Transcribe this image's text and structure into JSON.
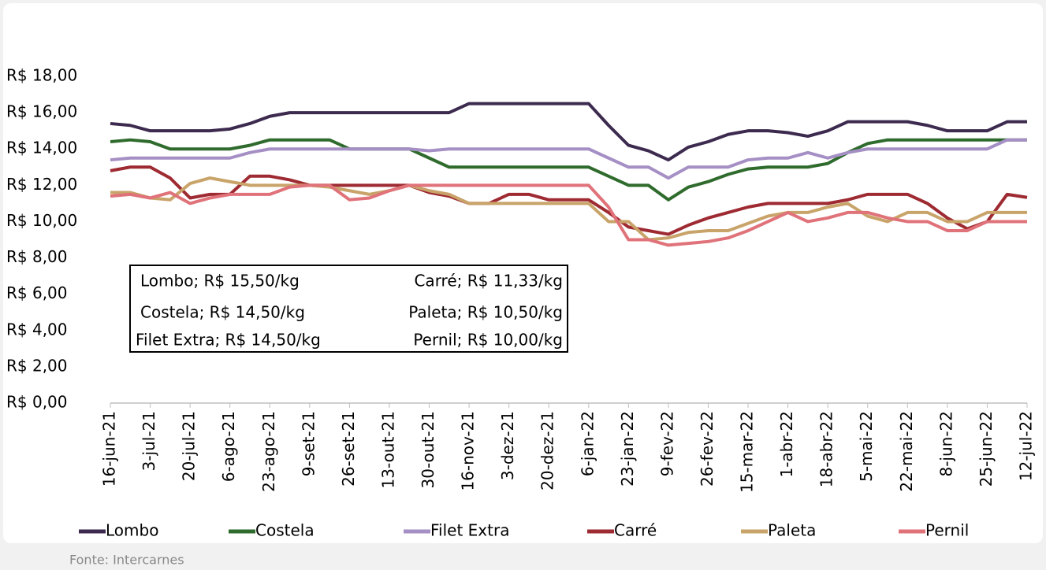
{
  "chart_data": {
    "type": "line",
    "categories": [
      "16-jun-21",
      null,
      "3-jul-21",
      null,
      "20-jul-21",
      null,
      "6-ago-21",
      null,
      "23-ago-21",
      null,
      "9-set-21",
      null,
      "26-set-21",
      null,
      "13-out-21",
      null,
      "30-out-21",
      null,
      "16-nov-21",
      null,
      "3-dez-21",
      null,
      "20-dez-21",
      null,
      "6-jan-22",
      null,
      "23-jan-22",
      null,
      "9-fev-22",
      null,
      "26-fev-22",
      null,
      "15-mar-22",
      null,
      "1-abr-22",
      null,
      "18-abr-22",
      null,
      "5-mai-22",
      null,
      "22-mai-22",
      null,
      "8-jun-22",
      null,
      "25-jun-22",
      null,
      "12-jul-22"
    ],
    "series": [
      {
        "name": "Lombo",
        "color": "#3d2b4f",
        "values": [
          15.4,
          15.3,
          15.0,
          15.0,
          15.0,
          15.0,
          15.1,
          15.4,
          15.8,
          16.0,
          16.0,
          16.0,
          16.0,
          16.0,
          16.0,
          16.0,
          16.0,
          16.0,
          16.5,
          16.5,
          16.5,
          16.5,
          16.5,
          16.5,
          16.5,
          15.3,
          14.2,
          13.9,
          13.4,
          14.1,
          14.4,
          14.8,
          15.0,
          15.0,
          14.9,
          14.7,
          15.0,
          15.5,
          15.5,
          15.5,
          15.5,
          15.3,
          15.0,
          15.0,
          15.0,
          15.5,
          15.5
        ]
      },
      {
        "name": "Costela",
        "color": "#2f6b2d",
        "values": [
          14.4,
          14.5,
          14.4,
          14.0,
          14.0,
          14.0,
          14.0,
          14.2,
          14.5,
          14.5,
          14.5,
          14.5,
          14.0,
          14.0,
          14.0,
          14.0,
          13.5,
          13.0,
          13.0,
          13.0,
          13.0,
          13.0,
          13.0,
          13.0,
          13.0,
          12.5,
          12.0,
          12.0,
          11.2,
          11.9,
          12.2,
          12.6,
          12.9,
          13.0,
          13.0,
          13.0,
          13.2,
          13.8,
          14.3,
          14.5,
          14.5,
          14.5,
          14.5,
          14.5,
          14.5,
          14.5,
          14.5
        ]
      },
      {
        "name": "Filet Extra",
        "color": "#a58fc4",
        "values": [
          13.4,
          13.5,
          13.5,
          13.5,
          13.5,
          13.5,
          13.5,
          13.8,
          14.0,
          14.0,
          14.0,
          14.0,
          14.0,
          14.0,
          14.0,
          14.0,
          13.9,
          14.0,
          14.0,
          14.0,
          14.0,
          14.0,
          14.0,
          14.0,
          14.0,
          13.5,
          13.0,
          13.0,
          12.4,
          13.0,
          13.0,
          13.0,
          13.4,
          13.5,
          13.5,
          13.8,
          13.5,
          13.8,
          14.0,
          14.0,
          14.0,
          14.0,
          14.0,
          14.0,
          14.0,
          14.5,
          14.5
        ]
      },
      {
        "name": "Carré",
        "color": "#9e2a32",
        "values": [
          12.8,
          13.0,
          13.0,
          12.4,
          11.3,
          11.5,
          11.5,
          12.5,
          12.5,
          12.3,
          12.0,
          12.0,
          12.0,
          12.0,
          12.0,
          12.0,
          11.6,
          11.4,
          11.0,
          11.0,
          11.5,
          11.5,
          11.2,
          11.2,
          11.2,
          10.5,
          9.7,
          9.5,
          9.3,
          9.8,
          10.2,
          10.5,
          10.8,
          11.0,
          11.0,
          11.0,
          11.0,
          11.2,
          11.5,
          11.5,
          11.5,
          11.0,
          10.2,
          9.6,
          10.0,
          11.5,
          11.33
        ]
      },
      {
        "name": "Paleta",
        "color": "#c9a46a",
        "values": [
          11.6,
          11.6,
          11.3,
          11.2,
          12.1,
          12.4,
          12.2,
          12.0,
          12.0,
          12.0,
          12.0,
          11.9,
          11.7,
          11.5,
          11.7,
          12.0,
          11.7,
          11.5,
          11.0,
          11.0,
          11.0,
          11.0,
          11.0,
          11.0,
          11.0,
          10.0,
          10.0,
          9.0,
          9.1,
          9.4,
          9.5,
          9.5,
          9.9,
          10.3,
          10.5,
          10.5,
          10.8,
          11.0,
          10.3,
          10.0,
          10.5,
          10.5,
          10.0,
          10.0,
          10.5,
          10.5,
          10.5
        ]
      },
      {
        "name": "Pernil",
        "color": "#e0727a",
        "values": [
          11.4,
          11.5,
          11.3,
          11.6,
          11.0,
          11.3,
          11.5,
          11.5,
          11.5,
          11.9,
          12.0,
          12.0,
          11.2,
          11.3,
          11.7,
          12.0,
          12.0,
          12.0,
          12.0,
          12.0,
          12.0,
          12.0,
          12.0,
          12.0,
          12.0,
          10.8,
          9.0,
          9.0,
          8.7,
          8.8,
          8.9,
          9.1,
          9.5,
          10.0,
          10.5,
          10.0,
          10.2,
          10.5,
          10.5,
          10.2,
          10.0,
          10.0,
          9.5,
          9.5,
          10.0,
          10.0,
          10.0
        ]
      }
    ],
    "ylim": [
      0,
      18
    ],
    "yticks": [
      {
        "value": 0,
        "label": "R$ 0,00"
      },
      {
        "value": 2,
        "label": "R$ 2,00"
      },
      {
        "value": 4,
        "label": "R$ 4,00"
      },
      {
        "value": 6,
        "label": "R$ 6,00"
      },
      {
        "value": 8,
        "label": "R$ 8,00"
      },
      {
        "value": 10,
        "label": "R$ 10,00"
      },
      {
        "value": 12,
        "label": "R$ 12,00"
      },
      {
        "value": 14,
        "label": "R$ 14,00"
      },
      {
        "value": 16,
        "label": "R$ 16,00"
      },
      {
        "value": 18,
        "label": "R$ 18,00"
      }
    ],
    "annotations": [
      "Lombo; R$ 15,50/kg",
      "Carré; R$ 11,33/kg",
      "Costela; R$ 14,50/kg",
      "Paleta; R$ 10,50/kg",
      "Filet Extra; R$ 14,50/kg",
      "Pernil; R$ 10,00/kg"
    ],
    "source": "Fonte: Intercarnes"
  }
}
